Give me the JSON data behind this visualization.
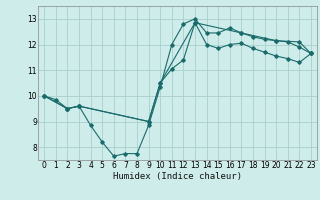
{
  "xlabel": "Humidex (Indice chaleur)",
  "bg_color": "#ceecea",
  "line_color": "#1a6b6b",
  "grid_color": "#aacfcc",
  "xlim": [
    -0.5,
    23.5
  ],
  "ylim": [
    7.5,
    13.5
  ],
  "xticks": [
    0,
    1,
    2,
    3,
    4,
    5,
    6,
    7,
    8,
    9,
    10,
    11,
    12,
    13,
    14,
    15,
    16,
    17,
    18,
    19,
    20,
    21,
    22,
    23
  ],
  "yticks": [
    8,
    9,
    10,
    11,
    12,
    13
  ],
  "series1_x": [
    0,
    1,
    2,
    3,
    4,
    5,
    6,
    7,
    8,
    9,
    10,
    11,
    12,
    13,
    14,
    15,
    16,
    17,
    18,
    19,
    20,
    21,
    22,
    23
  ],
  "series1_y": [
    10.0,
    9.85,
    9.5,
    9.6,
    8.85,
    8.2,
    7.65,
    7.75,
    7.75,
    8.85,
    10.35,
    12.0,
    12.8,
    13.0,
    12.45,
    12.45,
    12.65,
    12.45,
    12.3,
    12.2,
    12.15,
    12.1,
    11.9,
    11.65
  ],
  "series2_x": [
    0,
    2,
    3,
    9,
    10,
    11,
    12,
    13,
    14,
    15,
    16,
    17,
    18,
    19,
    20,
    21,
    22,
    23
  ],
  "series2_y": [
    10.0,
    9.5,
    9.6,
    9.0,
    10.5,
    11.05,
    11.4,
    12.85,
    12.0,
    11.85,
    12.0,
    12.05,
    11.85,
    11.7,
    11.55,
    11.45,
    11.3,
    11.65
  ],
  "series3_x": [
    0,
    2,
    3,
    9,
    10,
    13,
    17,
    20,
    22,
    23
  ],
  "series3_y": [
    10.0,
    9.5,
    9.6,
    9.0,
    10.5,
    12.85,
    12.45,
    12.15,
    12.1,
    11.65
  ]
}
